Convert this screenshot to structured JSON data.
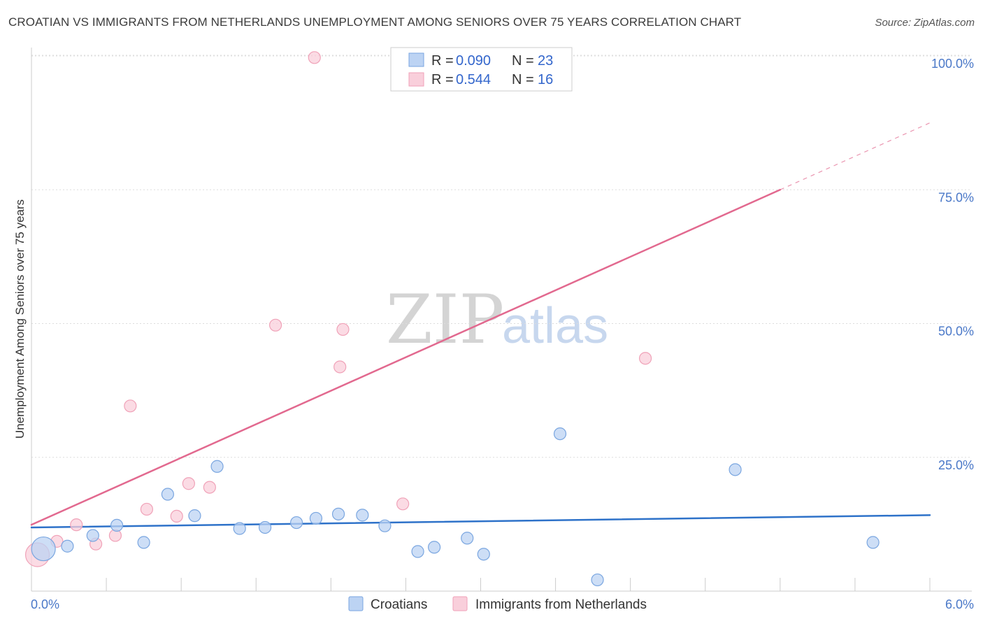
{
  "chart_data": {
    "type": "scatter",
    "title": "CROATIAN VS IMMIGRANTS FROM NETHERLANDS UNEMPLOYMENT AMONG SENIORS OVER 75 YEARS CORRELATION CHART",
    "source": "Source: ZipAtlas.com",
    "xlabel": "",
    "ylabel": "Unemployment Among Seniors over 75 years",
    "xlim": [
      0,
      6
    ],
    "ylim": [
      0,
      100
    ],
    "x_tick_labels": [
      "0.0%",
      "6.0%"
    ],
    "y_ticks": [
      25,
      50,
      75,
      100
    ],
    "y_tick_labels": [
      "25.0%",
      "50.0%",
      "75.0%",
      "100.0%"
    ],
    "grid": true,
    "watermark": {
      "zip": "ZIP",
      "atlas": "atlas"
    },
    "legend": {
      "entries": [
        {
          "r_label": "R =",
          "r_value": "0.090",
          "n_label": "N =",
          "n_value": "23"
        },
        {
          "r_label": "R =",
          "r_value": "0.544",
          "n_label": "N =",
          "n_value": "16"
        }
      ]
    },
    "series": [
      {
        "name": "Croatians",
        "color": "#7aa6e0",
        "fill": "#bcd3f3",
        "trend_color": "#2e72c9",
        "trend": {
          "x0": 0,
          "y0": 11.9,
          "x1": 6,
          "y1": 14.2
        },
        "points": [
          {
            "x": 0.08,
            "y": 7.9,
            "big": true
          },
          {
            "x": 0.24,
            "y": 8.4
          },
          {
            "x": 0.41,
            "y": 10.4
          },
          {
            "x": 0.57,
            "y": 12.3
          },
          {
            "x": 0.75,
            "y": 9.1
          },
          {
            "x": 0.91,
            "y": 18.1
          },
          {
            "x": 1.09,
            "y": 14.1
          },
          {
            "x": 1.24,
            "y": 23.3
          },
          {
            "x": 1.39,
            "y": 11.7
          },
          {
            "x": 1.56,
            "y": 11.9
          },
          {
            "x": 1.77,
            "y": 12.8
          },
          {
            "x": 1.9,
            "y": 13.6
          },
          {
            "x": 2.05,
            "y": 14.4
          },
          {
            "x": 2.21,
            "y": 14.2
          },
          {
            "x": 2.36,
            "y": 12.2
          },
          {
            "x": 2.58,
            "y": 7.4
          },
          {
            "x": 2.69,
            "y": 8.2
          },
          {
            "x": 2.91,
            "y": 9.9
          },
          {
            "x": 3.02,
            "y": 6.9
          },
          {
            "x": 3.53,
            "y": 29.4
          },
          {
            "x": 3.78,
            "y": 2.1
          },
          {
            "x": 4.7,
            "y": 22.7
          },
          {
            "x": 5.62,
            "y": 9.1
          }
        ]
      },
      {
        "name": "Immigrants from Netherlands",
        "color": "#f0a2b8",
        "fill": "#f9cfdb",
        "trend_color": "#e2698f",
        "trend": {
          "x0": 0,
          "y0": 12.4,
          "x1": 5.0,
          "y1": 75.0
        },
        "trend_dashed": {
          "x0": 5.0,
          "y0": 75.0,
          "x1": 6.0,
          "y1": 87.5
        },
        "points": [
          {
            "x": 0.04,
            "y": 6.8,
            "big": true
          },
          {
            "x": 0.17,
            "y": 9.3
          },
          {
            "x": 0.3,
            "y": 12.4
          },
          {
            "x": 0.43,
            "y": 8.8
          },
          {
            "x": 0.56,
            "y": 10.4
          },
          {
            "x": 0.66,
            "y": 34.6
          },
          {
            "x": 0.77,
            "y": 15.3
          },
          {
            "x": 0.97,
            "y": 14.0
          },
          {
            "x": 1.05,
            "y": 20.1
          },
          {
            "x": 1.19,
            "y": 19.4
          },
          {
            "x": 1.63,
            "y": 49.7
          },
          {
            "x": 1.89,
            "y": 99.7
          },
          {
            "x": 2.06,
            "y": 41.9
          },
          {
            "x": 2.08,
            "y": 48.9
          },
          {
            "x": 2.48,
            "y": 16.3
          },
          {
            "x": 4.1,
            "y": 43.5
          }
        ]
      }
    ]
  }
}
